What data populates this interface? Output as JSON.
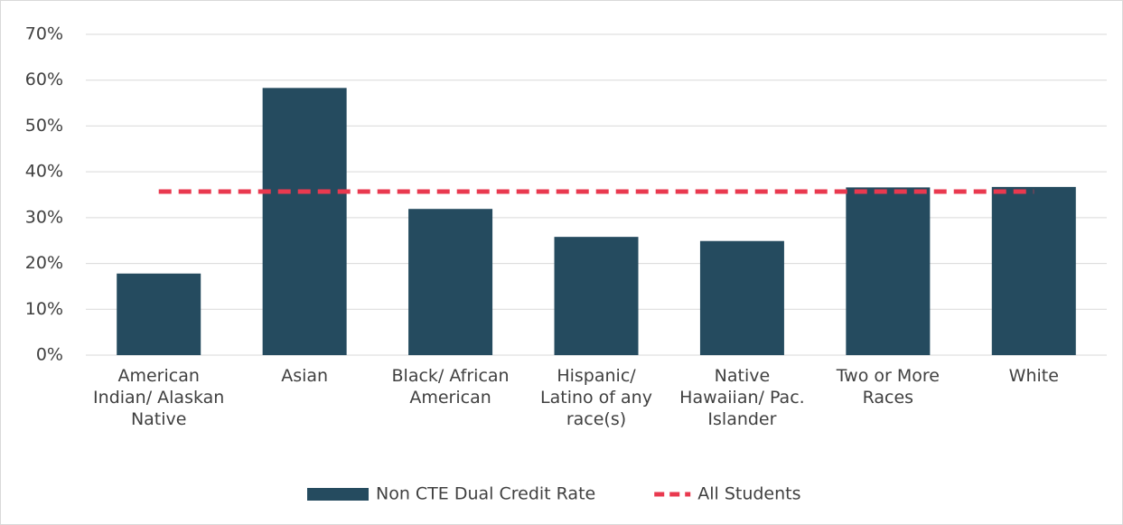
{
  "chart_data": {
    "type": "bar",
    "categories": [
      "American Indian/ Alaskan Native",
      "Asian",
      "Black/ African American",
      "Hispanic/ Latino of any race(s)",
      "Native Hawaiian/ Pac. Islander",
      "Two or More Races",
      "White"
    ],
    "series": [
      {
        "name": "Non CTE Dual Credit Rate",
        "type": "bar",
        "color": "#254b5f",
        "values": [
          17.8,
          58.3,
          31.9,
          25.8,
          24.9,
          36.6,
          36.7
        ]
      },
      {
        "name": "All Students",
        "type": "line",
        "dashed": true,
        "color": "#e9394f",
        "values": [
          35.7,
          35.7,
          35.7,
          35.7,
          35.7,
          35.7,
          35.7
        ]
      }
    ],
    "ylim": [
      0,
      70
    ],
    "yticks": [
      {
        "value": 0,
        "label": "0%"
      },
      {
        "value": 10,
        "label": "10%"
      },
      {
        "value": 20,
        "label": "20%"
      },
      {
        "value": 30,
        "label": "30%"
      },
      {
        "value": 40,
        "label": "40%"
      },
      {
        "value": 50,
        "label": "50%"
      },
      {
        "value": 60,
        "label": "60%"
      },
      {
        "value": 70,
        "label": "70%"
      }
    ],
    "grid": true,
    "legend": "bottom"
  }
}
